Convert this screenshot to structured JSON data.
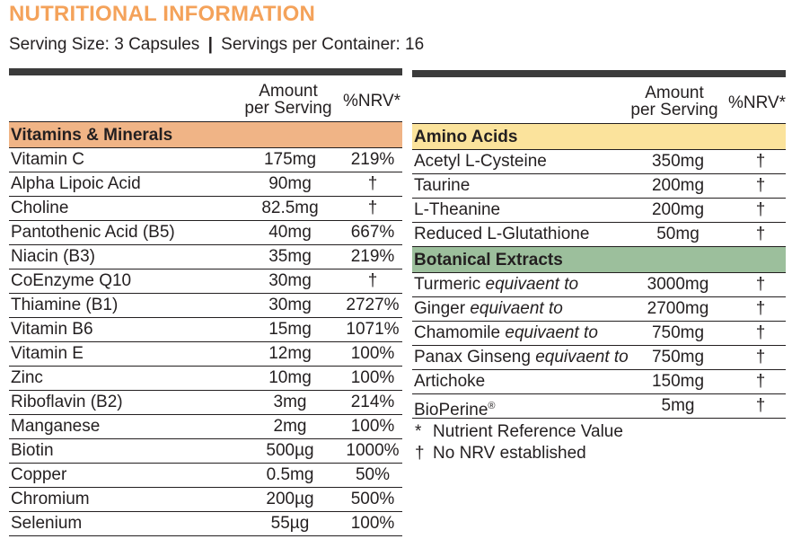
{
  "title": "NUTRITIONAL INFORMATION",
  "serving": {
    "size": "Serving Size: 3 Capsules",
    "separator": "|",
    "servings": "Servings per Container: 16"
  },
  "headers": {
    "amount_line1": "Amount",
    "amount_line2": "per Serving",
    "nrv": "%NRV*"
  },
  "colors": {
    "title": "#f4a25a",
    "vitamins_minerals": "#f0b486",
    "amino_acids": "#fbe39c",
    "botanical_extracts": "#9cbf9c",
    "rule": "#3b3b3b"
  },
  "vitamins_minerals": {
    "label": "Vitamins & Minerals",
    "rows": [
      {
        "name": "Vitamin C",
        "amount": "175mg",
        "nrv": "219%"
      },
      {
        "name": "Alpha Lipoic Acid",
        "amount": "90mg",
        "nrv": "†"
      },
      {
        "name": "Choline",
        "amount": "82.5mg",
        "nrv": "†"
      },
      {
        "name": "Pantothenic Acid (B5)",
        "amount": "40mg",
        "nrv": "667%"
      },
      {
        "name": "Niacin (B3)",
        "amount": "35mg",
        "nrv": "219%"
      },
      {
        "name": "CoEnzyme Q10",
        "amount": "30mg",
        "nrv": "†"
      },
      {
        "name": "Thiamine (B1)",
        "amount": "30mg",
        "nrv": "2727%"
      },
      {
        "name": "Vitamin B6",
        "amount": "15mg",
        "nrv": "1071%"
      },
      {
        "name": "Vitamin E",
        "amount": "12mg",
        "nrv": "100%"
      },
      {
        "name": "Zinc",
        "amount": "10mg",
        "nrv": "100%"
      },
      {
        "name": "Riboflavin (B2)",
        "amount": "3mg",
        "nrv": "214%"
      },
      {
        "name": "Manganese",
        "amount": "2mg",
        "nrv": "100%"
      },
      {
        "name": "Biotin",
        "amount": "500µg",
        "nrv": "1000%"
      },
      {
        "name": "Copper",
        "amount": "0.5mg",
        "nrv": "50%"
      },
      {
        "name": "Chromium",
        "amount": "200µg",
        "nrv": "500%"
      },
      {
        "name": "Selenium",
        "amount": "55µg",
        "nrv": "100%"
      }
    ]
  },
  "amino_acids": {
    "label": "Amino Acids",
    "rows": [
      {
        "name": "Acetyl L-Cysteine",
        "amount": "350mg",
        "nrv": "†"
      },
      {
        "name": "Taurine",
        "amount": "200mg",
        "nrv": "†"
      },
      {
        "name": "L-Theanine",
        "amount": "200mg",
        "nrv": "†"
      },
      {
        "name": "Reduced L-Glutathione",
        "amount": "50mg",
        "nrv": "†"
      }
    ]
  },
  "botanical_extracts": {
    "label": "Botanical Extracts",
    "rows": [
      {
        "name": "Turmeric",
        "qualifier": "equivaent to",
        "amount": "3000mg",
        "nrv": "†"
      },
      {
        "name": "Ginger",
        "qualifier": "equivaent to",
        "amount": "2700mg",
        "nrv": "†"
      },
      {
        "name": "Chamomile",
        "qualifier": "equivaent to",
        "amount": "750mg",
        "nrv": "†"
      },
      {
        "name": "Panax Ginseng ",
        "qualifier": "equivaent to",
        "amount": "750mg",
        "nrv": "†"
      },
      {
        "name": "Artichoke",
        "qualifier": "",
        "amount": "150mg",
        "nrv": "†"
      },
      {
        "name": "BioPerine",
        "qualifier": "",
        "mark": "®",
        "amount": "5mg",
        "nrv": "†"
      }
    ]
  },
  "footnotes": [
    {
      "symbol": "*",
      "text": "Nutrient Reference Value"
    },
    {
      "symbol": "†",
      "text": "No NRV established"
    }
  ]
}
